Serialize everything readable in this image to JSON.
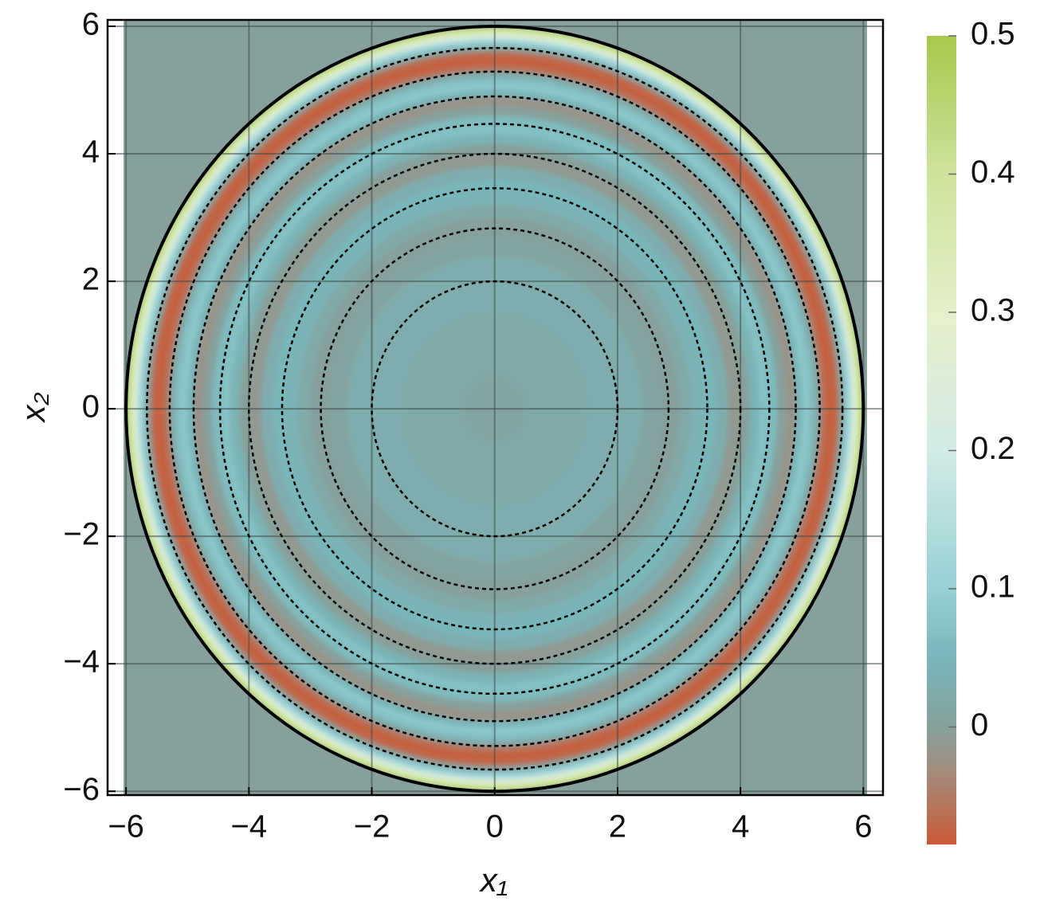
{
  "chart_data": {
    "type": "density",
    "xlabel": "x₁",
    "ylabel": "x₂",
    "xlim": [
      -6.3,
      6.32
    ],
    "ylim": [
      -6.06,
      6.1
    ],
    "density_xrange": [
      -6.04,
      6.06
    ],
    "xticks": [
      {
        "value": -6,
        "label": "−6"
      },
      {
        "value": -4,
        "label": "−4"
      },
      {
        "value": -2,
        "label": "−2"
      },
      0,
      2,
      4,
      6
    ],
    "yticks": [
      {
        "value": -6,
        "label": "−6"
      },
      {
        "value": -4,
        "label": "−4"
      },
      {
        "value": -2,
        "label": "−2"
      },
      0,
      2,
      4,
      6
    ],
    "grid": true,
    "background_color": "#87a09b",
    "profile": {
      "r": [
        6.0,
        5.95,
        5.88,
        5.82,
        5.75,
        5.68,
        5.6,
        5.5,
        5.4,
        5.3,
        5.2,
        5.1,
        5.0,
        4.9,
        4.75,
        4.6,
        4.45,
        4.3,
        4.15,
        4.0,
        3.8,
        3.6,
        3.4,
        3.2,
        3.0,
        2.7,
        2.4,
        2.0,
        1.5,
        1.0,
        0.5
      ],
      "values": [
        0.45,
        0.38,
        0.25,
        0.14,
        0.08,
        0.0,
        -0.07,
        -0.08,
        -0.06,
        0.02,
        0.07,
        0.08,
        0.05,
        -0.02,
        0.0,
        0.06,
        0.07,
        0.04,
        0.0,
        -0.01,
        0.03,
        0.05,
        0.04,
        0.02,
        0.0,
        0.01,
        0.03,
        0.03,
        0.02,
        0.02,
        0.01
      ]
    },
    "boundary_radius": 6,
    "contour_radii": [
      2,
      2.83,
      3.46,
      4,
      4.47,
      4.9,
      5.29,
      5.66
    ],
    "clim": [
      -0.085,
      0.5
    ],
    "colorbar_ticks": [
      0,
      0.1,
      0.2,
      0.3,
      0.4,
      0.5
    ],
    "colormap": [
      {
        "value": -0.085,
        "color": "#c95a35"
      },
      {
        "value": -0.04,
        "color": "#a98676"
      },
      {
        "value": 0,
        "color": "#87a09b"
      },
      {
        "value": 0.05,
        "color": "#79b6b9"
      },
      {
        "value": 0.1,
        "color": "#98d0d3"
      },
      {
        "value": 0.2,
        "color": "#d4ebe6"
      },
      {
        "value": 0.3,
        "color": "#e6f0cc"
      },
      {
        "value": 0.4,
        "color": "#cde39c"
      },
      {
        "value": 0.5,
        "color": "#a6c84e"
      }
    ]
  }
}
